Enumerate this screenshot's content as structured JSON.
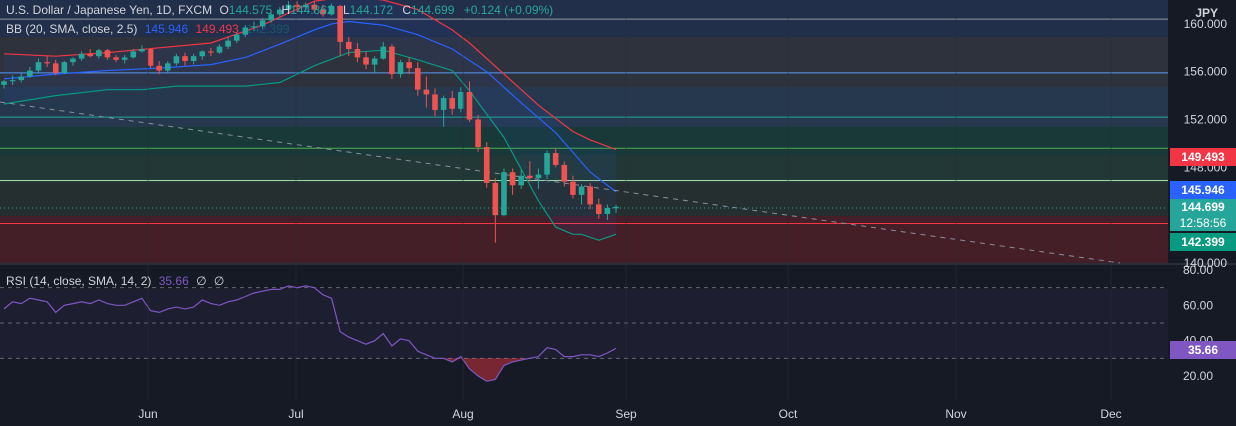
{
  "header": {
    "symbol_line": "U.S. Dollar / Japanese Yen, 1D, FXCM",
    "o_label": "O",
    "o": "144.575",
    "h_label": "H",
    "h": "144.862",
    "l_label": "L",
    "l": "144.172",
    "c_label": "C",
    "c": "144.699",
    "change": "+0.124 (+0.09%)",
    "bb_label": "BB (20, SMA, close, 2.5)",
    "bb_basis": "145.946",
    "bb_upper": "149.493",
    "bb_lower": "142.399"
  },
  "rsi_header": {
    "label": "RSI (14, close, SMA, 14, 2)",
    "value": "35.66",
    "na1": "∅",
    "na2": "∅"
  },
  "currency": "JPY",
  "price_tags": {
    "upper": "149.493",
    "basis": "145.946",
    "last": "144.699",
    "countdown": "12:58:56",
    "lower": "142.399",
    "rsi": "35.66"
  },
  "colors": {
    "background": "#161a25",
    "up": "#26a69a",
    "down": "#ef5350",
    "bb_upper": "#f23645",
    "bb_basis": "#2962ff",
    "bb_lower": "#089981",
    "rsi": "#7e57c2",
    "text": "#d1d4dc"
  },
  "chart_data": [
    {
      "type": "candlestick",
      "title": "U.S. Dollar / Japanese Yen, 1D, FXCM",
      "ylim": [
        140,
        162
      ],
      "y_ticks": [
        140.0,
        144.0,
        148.0,
        152.0,
        156.0,
        160.0
      ],
      "y_tick_labels": [
        "140.000",
        "144.000",
        "148.000",
        "152.000",
        "156.000",
        "160.000"
      ],
      "x_tick_labels": [
        "Jun",
        "Jul",
        "Aug",
        "Sep",
        "Oct",
        "Nov",
        "Dec"
      ],
      "horizontal_levels": [
        160.4,
        155.9,
        152.2,
        149.6,
        146.9,
        143.3
      ],
      "ohlc": [
        [
          154.9,
          155.3,
          154.6,
          155.2
        ],
        [
          155.2,
          155.7,
          154.9,
          155.3
        ],
        [
          155.3,
          155.9,
          155.1,
          155.6
        ],
        [
          155.6,
          156.4,
          155.5,
          156.1
        ],
        [
          156.1,
          157.1,
          155.9,
          156.8
        ],
        [
          156.8,
          157.3,
          156.4,
          156.7
        ],
        [
          156.7,
          157.0,
          155.7,
          155.9
        ],
        [
          155.9,
          156.9,
          155.8,
          156.8
        ],
        [
          156.8,
          157.2,
          156.5,
          157.1
        ],
        [
          157.1,
          157.7,
          156.9,
          157.5
        ],
        [
          157.5,
          157.9,
          157.2,
          157.3
        ],
        [
          157.3,
          157.9,
          157.1,
          157.8
        ],
        [
          157.8,
          157.9,
          157.0,
          157.2
        ],
        [
          157.2,
          157.4,
          156.8,
          157.0
        ],
        [
          157.0,
          157.4,
          156.7,
          157.2
        ],
        [
          157.2,
          157.9,
          157.1,
          157.7
        ],
        [
          157.7,
          158.2,
          157.6,
          157.9
        ],
        [
          157.9,
          157.9,
          156.3,
          156.5
        ],
        [
          156.5,
          156.9,
          155.8,
          156.1
        ],
        [
          156.1,
          156.9,
          155.9,
          156.7
        ],
        [
          156.7,
          157.5,
          156.5,
          157.3
        ],
        [
          157.3,
          157.6,
          156.5,
          156.9
        ],
        [
          156.9,
          157.5,
          156.6,
          157.3
        ],
        [
          157.3,
          157.8,
          157.0,
          157.7
        ],
        [
          157.7,
          158.0,
          157.3,
          157.6
        ],
        [
          157.6,
          158.3,
          157.5,
          158.1
        ],
        [
          158.1,
          158.9,
          157.9,
          158.6
        ],
        [
          158.6,
          159.3,
          158.4,
          159.1
        ],
        [
          159.1,
          159.9,
          158.9,
          159.7
        ],
        [
          159.7,
          160.2,
          159.4,
          159.8
        ],
        [
          159.8,
          160.5,
          159.6,
          160.3
        ],
        [
          160.3,
          160.9,
          160.1,
          160.8
        ],
        [
          160.8,
          161.4,
          160.6,
          161.2
        ],
        [
          161.2,
          161.9,
          160.9,
          161.6
        ],
        [
          161.6,
          161.9,
          161.0,
          161.4
        ],
        [
          161.4,
          161.8,
          161.1,
          161.6
        ],
        [
          161.6,
          161.9,
          160.9,
          161.2
        ],
        [
          161.2,
          161.6,
          160.6,
          160.8
        ],
        [
          160.8,
          161.7,
          160.7,
          161.5
        ],
        [
          161.5,
          161.6,
          157.3,
          158.5
        ],
        [
          158.5,
          158.9,
          157.3,
          157.9
        ],
        [
          157.9,
          158.4,
          156.8,
          157.2
        ],
        [
          157.2,
          157.7,
          156.2,
          156.6
        ],
        [
          156.6,
          157.3,
          155.9,
          157.1
        ],
        [
          157.1,
          158.5,
          157.0,
          158.1
        ],
        [
          158.1,
          158.3,
          155.4,
          155.8
        ],
        [
          155.8,
          157.0,
          155.5,
          156.8
        ],
        [
          156.8,
          157.2,
          155.8,
          156.3
        ],
        [
          156.3,
          156.8,
          154.0,
          154.5
        ],
        [
          154.5,
          155.6,
          153.0,
          154.1
        ],
        [
          154.1,
          154.6,
          152.3,
          152.8
        ],
        [
          152.8,
          154.0,
          151.4,
          153.8
        ],
        [
          153.8,
          154.4,
          152.4,
          152.9
        ],
        [
          152.9,
          154.7,
          152.6,
          154.3
        ],
        [
          154.3,
          155.2,
          151.8,
          152.0
        ],
        [
          152.0,
          152.4,
          149.3,
          149.7
        ],
        [
          149.7,
          150.1,
          146.3,
          146.7
        ],
        [
          146.7,
          147.1,
          141.7,
          144.0
        ],
        [
          144.0,
          147.9,
          143.9,
          147.6
        ],
        [
          147.6,
          147.9,
          145.7,
          146.5
        ],
        [
          146.5,
          147.8,
          146.2,
          147.3
        ],
        [
          147.3,
          148.5,
          146.8,
          147.1
        ],
        [
          147.1,
          147.9,
          146.2,
          147.4
        ],
        [
          147.4,
          149.4,
          147.0,
          149.2
        ],
        [
          149.2,
          149.6,
          148.0,
          148.2
        ],
        [
          148.2,
          148.5,
          146.4,
          146.8
        ],
        [
          146.8,
          147.3,
          145.4,
          145.7
        ],
        [
          145.7,
          146.6,
          144.9,
          146.4
        ],
        [
          146.4,
          146.7,
          144.5,
          144.9
        ],
        [
          144.9,
          145.4,
          143.7,
          144.1
        ],
        [
          144.1,
          144.9,
          143.6,
          144.6
        ],
        [
          144.575,
          144.862,
          144.172,
          144.699
        ]
      ],
      "bb_upper": [
        [
          0,
          157.5
        ],
        [
          6,
          157.3
        ],
        [
          12,
          157.6
        ],
        [
          18,
          158.0
        ],
        [
          24,
          158.4
        ],
        [
          30,
          159.9
        ],
        [
          36,
          161.9
        ],
        [
          40,
          162.3
        ],
        [
          44,
          162.0
        ],
        [
          48,
          161.2
        ],
        [
          52,
          159.5
        ],
        [
          54,
          158.4
        ],
        [
          58,
          155.8
        ],
        [
          62,
          153.2
        ],
        [
          66,
          151.0
        ],
        [
          68,
          150.3
        ],
        [
          71,
          149.493
        ]
      ],
      "bb_basis": [
        [
          0,
          155.4
        ],
        [
          6,
          155.8
        ],
        [
          12,
          156.1
        ],
        [
          18,
          156.3
        ],
        [
          24,
          156.6
        ],
        [
          28,
          157.2
        ],
        [
          32,
          158.3
        ],
        [
          36,
          159.5
        ],
        [
          38,
          160.0
        ],
        [
          40,
          160.2
        ],
        [
          44,
          159.9
        ],
        [
          48,
          159.1
        ],
        [
          52,
          157.9
        ],
        [
          56,
          156.0
        ],
        [
          60,
          153.4
        ],
        [
          64,
          150.9
        ],
        [
          68,
          147.6
        ],
        [
          71,
          145.946
        ]
      ],
      "bb_lower": [
        [
          0,
          153.3
        ],
        [
          6,
          154.0
        ],
        [
          12,
          154.5
        ],
        [
          16,
          154.5
        ],
        [
          20,
          154.8
        ],
        [
          24,
          154.8
        ],
        [
          28,
          154.8
        ],
        [
          32,
          155.1
        ],
        [
          36,
          156.5
        ],
        [
          40,
          157.6
        ],
        [
          44,
          157.8
        ],
        [
          48,
          157.0
        ],
        [
          52,
          156.1
        ],
        [
          54,
          154.4
        ],
        [
          58,
          150.5
        ],
        [
          62,
          145.2
        ],
        [
          64,
          143.0
        ],
        [
          66,
          142.4
        ],
        [
          67,
          142.4
        ],
        [
          69,
          141.9
        ],
        [
          71,
          142.399
        ]
      ]
    },
    {
      "type": "line",
      "title": "RSI (14, close, SMA, 14, 2)",
      "ylim": [
        12,
        80
      ],
      "y_ticks": [
        20,
        40,
        60,
        80
      ],
      "y_tick_labels": [
        "20.00",
        "40.00",
        "60.00",
        "80.00"
      ],
      "bands": [
        70,
        50,
        30
      ],
      "x_tick_labels": [
        "Jun",
        "Jul",
        "Aug",
        "Sep",
        "Oct",
        "Nov",
        "Dec"
      ],
      "values": [
        58,
        62,
        61,
        64,
        63,
        62,
        56,
        60,
        61,
        62,
        61,
        63,
        61,
        60,
        60,
        62,
        64,
        57,
        56,
        58,
        59,
        58,
        59,
        63,
        61,
        60,
        62,
        63,
        65,
        67,
        68,
        69,
        69,
        71,
        70,
        71,
        70,
        66,
        64,
        45,
        42,
        40,
        38,
        40,
        44,
        37,
        41,
        40,
        34,
        32,
        30,
        30,
        28,
        31,
        24,
        20,
        17,
        18,
        26,
        28,
        29,
        30,
        31,
        36,
        35,
        31,
        31,
        32,
        32,
        31,
        33,
        35.66
      ]
    }
  ]
}
